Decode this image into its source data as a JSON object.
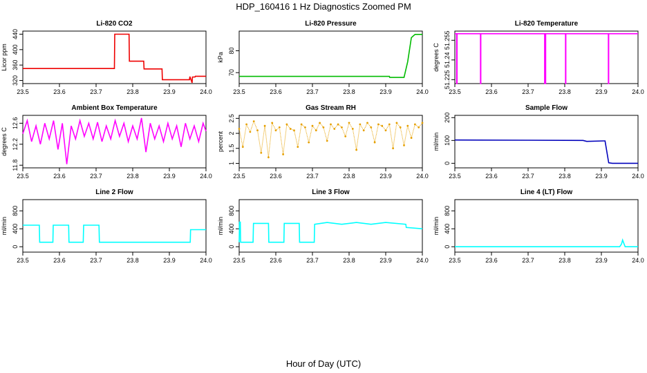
{
  "figure": {
    "title": "HDP_160416  1 Hz Diagnostics Zoomed PM",
    "xlabel": "Hour of Day (UTC)"
  },
  "chart_data": [
    {
      "type": "line",
      "title": "Li-820 CO2",
      "ylabel": "Licor ppm",
      "color": "#ee0000",
      "xlim": [
        23.5,
        24.0
      ],
      "ylim": [
        312,
        448
      ],
      "xticks": [
        "23.5",
        "23.6",
        "23.7",
        "23.8",
        "23.9",
        "24.0"
      ],
      "yticks": [
        320,
        360,
        400,
        440
      ],
      "series": [
        {
          "x": [
            23.5,
            23.75,
            23.751,
            23.79,
            23.791,
            23.83,
            23.831,
            23.88,
            23.881,
            23.955,
            23.956,
            23.962,
            23.963,
            23.97,
            23.971,
            24.0
          ],
          "y": [
            351,
            351,
            440,
            440,
            370,
            370,
            350,
            350,
            322,
            322,
            330,
            314,
            329,
            329,
            331,
            331
          ]
        }
      ]
    },
    {
      "type": "line",
      "title": "Li-820 Pressure",
      "ylabel": "kPa",
      "color": "#00bb00",
      "xlim": [
        23.5,
        24.0
      ],
      "ylim": [
        65,
        89
      ],
      "xticks": [
        "23.5",
        "23.6",
        "23.7",
        "23.8",
        "23.9",
        "24.0"
      ],
      "yticks": [
        70,
        80
      ],
      "series": [
        {
          "x": [
            23.5,
            23.91,
            23.911,
            23.95,
            23.96,
            23.97,
            23.98,
            24.0
          ],
          "y": [
            68.3,
            68.3,
            67.8,
            67.8,
            75,
            86,
            87.5,
            87.5
          ]
        }
      ]
    },
    {
      "type": "line",
      "title": "Li-820 Temperature",
      "ylabel": "degrees C",
      "color": "#ff00ff",
      "xlim": [
        23.5,
        24.0
      ],
      "ylim": [
        51.222,
        51.262
      ],
      "xticks": [
        "23.5",
        "23.6",
        "23.7",
        "23.8",
        "23.9",
        "24.0"
      ],
      "yticks": [
        51.225,
        51.24,
        51.255
      ],
      "series": [
        {
          "x": [
            23.5,
            23.505,
            23.505,
            23.506,
            23.506,
            23.57,
            23.57,
            23.571,
            23.571,
            23.745,
            23.745,
            23.746,
            23.746,
            23.747,
            23.747,
            23.748,
            23.748,
            23.802,
            23.802,
            23.803,
            23.803,
            23.919,
            23.919,
            23.92,
            23.92,
            24.0
          ],
          "y": [
            51.26,
            51.26,
            51.222,
            51.222,
            51.26,
            51.26,
            51.222,
            51.222,
            51.26,
            51.26,
            51.222,
            51.222,
            51.26,
            51.26,
            51.222,
            51.222,
            51.26,
            51.26,
            51.222,
            51.222,
            51.26,
            51.26,
            51.222,
            51.222,
            51.26,
            51.26
          ]
        }
      ]
    },
    {
      "type": "line",
      "title": "Ambient Box Temperature",
      "ylabel": "degrees C",
      "color": "#ff00ff",
      "xlim": [
        23.5,
        24.0
      ],
      "ylim": [
        11.75,
        12.75
      ],
      "xticks": [
        "23.5",
        "23.6",
        "23.7",
        "23.8",
        "23.9",
        "24.0"
      ],
      "yticks": [
        11.8,
        12.2,
        12.6
      ],
      "series": [
        {
          "x": [
            23.5,
            23.512,
            23.524,
            23.536,
            23.548,
            23.56,
            23.572,
            23.584,
            23.596,
            23.608,
            23.62,
            23.632,
            23.644,
            23.656,
            23.668,
            23.68,
            23.692,
            23.704,
            23.716,
            23.728,
            23.74,
            23.752,
            23.764,
            23.776,
            23.788,
            23.8,
            23.812,
            23.824,
            23.836,
            23.848,
            23.86,
            23.872,
            23.884,
            23.896,
            23.908,
            23.92,
            23.932,
            23.944,
            23.956,
            23.968,
            23.98,
            23.992,
            24.0
          ],
          "y": [
            12.4,
            12.65,
            12.25,
            12.55,
            12.2,
            12.6,
            12.3,
            12.65,
            12.1,
            12.6,
            11.82,
            12.55,
            12.3,
            12.65,
            12.35,
            12.6,
            12.3,
            12.62,
            12.25,
            12.55,
            12.3,
            12.65,
            12.35,
            12.6,
            12.25,
            12.55,
            12.3,
            12.7,
            12.05,
            12.6,
            12.3,
            12.55,
            12.25,
            12.6,
            12.3,
            12.55,
            12.15,
            12.6,
            12.3,
            12.55,
            12.25,
            12.6,
            12.45
          ]
        }
      ]
    },
    {
      "type": "scatter",
      "title": "Gas Stream RH",
      "ylabel": "percent",
      "color": "#e6a000",
      "xlim": [
        23.5,
        24.0
      ],
      "ylim": [
        0.85,
        2.6
      ],
      "xticks": [
        "23.5",
        "23.6",
        "23.7",
        "23.8",
        "23.9",
        "24.0"
      ],
      "yticks": [
        1.0,
        1.5,
        2.0,
        2.5
      ],
      "series": [
        {
          "x": [
            23.5,
            23.51,
            23.52,
            23.53,
            23.54,
            23.55,
            23.56,
            23.57,
            23.58,
            23.59,
            23.6,
            23.61,
            23.62,
            23.63,
            23.64,
            23.65,
            23.66,
            23.67,
            23.68,
            23.69,
            23.7,
            23.71,
            23.72,
            23.73,
            23.74,
            23.75,
            23.76,
            23.77,
            23.78,
            23.79,
            23.8,
            23.81,
            23.82,
            23.83,
            23.84,
            23.85,
            23.86,
            23.87,
            23.88,
            23.89,
            23.9,
            23.91,
            23.92,
            23.93,
            23.94,
            23.95,
            23.96,
            23.97,
            23.98,
            23.99,
            24.0
          ],
          "y": [
            2.15,
            1.55,
            2.3,
            2.05,
            2.4,
            2.1,
            1.35,
            2.25,
            1.2,
            2.35,
            2.1,
            2.2,
            1.3,
            2.3,
            2.15,
            2.1,
            1.55,
            2.3,
            2.2,
            1.7,
            2.25,
            2.1,
            2.35,
            2.2,
            1.75,
            2.3,
            2.15,
            2.3,
            2.2,
            1.9,
            2.35,
            2.15,
            1.45,
            2.3,
            2.1,
            2.35,
            2.2,
            1.7,
            2.3,
            2.25,
            2.1,
            2.3,
            1.5,
            2.35,
            2.2,
            1.6,
            2.25,
            1.85,
            2.3,
            2.2,
            2.35
          ]
        }
      ]
    },
    {
      "type": "line",
      "title": "Sample Flow",
      "ylabel": "ml/min",
      "color": "#0000bb",
      "xlim": [
        23.5,
        24.0
      ],
      "ylim": [
        -20,
        210
      ],
      "xticks": [
        "23.5",
        "23.6",
        "23.7",
        "23.8",
        "23.9",
        "24.0"
      ],
      "yticks": [
        0,
        100,
        200
      ],
      "series": [
        {
          "x": [
            23.5,
            23.7,
            23.85,
            23.86,
            23.905,
            23.91,
            23.92,
            23.93,
            24.0
          ],
          "y": [
            102,
            101,
            100,
            96,
            98,
            98,
            2,
            0,
            0
          ]
        }
      ]
    },
    {
      "type": "line",
      "title": "Line 2 Flow",
      "ylabel": "ml/min",
      "color": "#00ffff",
      "xlim": [
        23.5,
        24.0
      ],
      "ylim": [
        -120,
        1050
      ],
      "xticks": [
        "23.5",
        "23.6",
        "23.7",
        "23.8",
        "23.9",
        "24.0"
      ],
      "yticks": [
        0,
        400,
        800
      ],
      "series": [
        {
          "x": [
            23.5,
            23.501,
            23.545,
            23.546,
            23.582,
            23.583,
            23.625,
            23.626,
            23.665,
            23.666,
            23.708,
            23.709,
            23.957,
            23.958,
            24.0
          ],
          "y": [
            480,
            480,
            480,
            100,
            100,
            480,
            480,
            100,
            100,
            480,
            480,
            100,
            100,
            380,
            380
          ]
        }
      ]
    },
    {
      "type": "line",
      "title": "Line 3 Flow",
      "ylabel": "ml/min",
      "color": "#00ffff",
      "xlim": [
        23.5,
        24.0
      ],
      "ylim": [
        -120,
        1050
      ],
      "xticks": [
        "23.5",
        "23.6",
        "23.7",
        "23.8",
        "23.9",
        "24.0"
      ],
      "yticks": [
        0,
        400,
        800
      ],
      "series": [
        {
          "x": [
            23.5,
            23.501,
            23.503,
            23.504,
            23.538,
            23.539,
            23.58,
            23.581,
            23.622,
            23.623,
            23.664,
            23.665,
            23.705,
            23.706,
            23.74,
            23.78,
            23.82,
            23.86,
            23.9,
            23.955,
            23.956,
            24.0
          ],
          "y": [
            100,
            550,
            550,
            100,
            100,
            520,
            520,
            100,
            100,
            520,
            520,
            100,
            100,
            500,
            540,
            500,
            540,
            500,
            540,
            500,
            430,
            400
          ]
        }
      ]
    },
    {
      "type": "line",
      "title": "Line 4 (LT) Flow",
      "ylabel": "ml/min",
      "color": "#00ffff",
      "xlim": [
        23.5,
        24.0
      ],
      "ylim": [
        -120,
        1050
      ],
      "xticks": [
        "23.5",
        "23.6",
        "23.7",
        "23.8",
        "23.9",
        "24.0"
      ],
      "yticks": [
        0,
        400,
        800
      ],
      "series": [
        {
          "x": [
            23.5,
            23.95,
            23.955,
            23.958,
            23.962,
            23.965,
            24.0
          ],
          "y": [
            0,
            0,
            60,
            150,
            60,
            0,
            0
          ]
        }
      ]
    }
  ]
}
